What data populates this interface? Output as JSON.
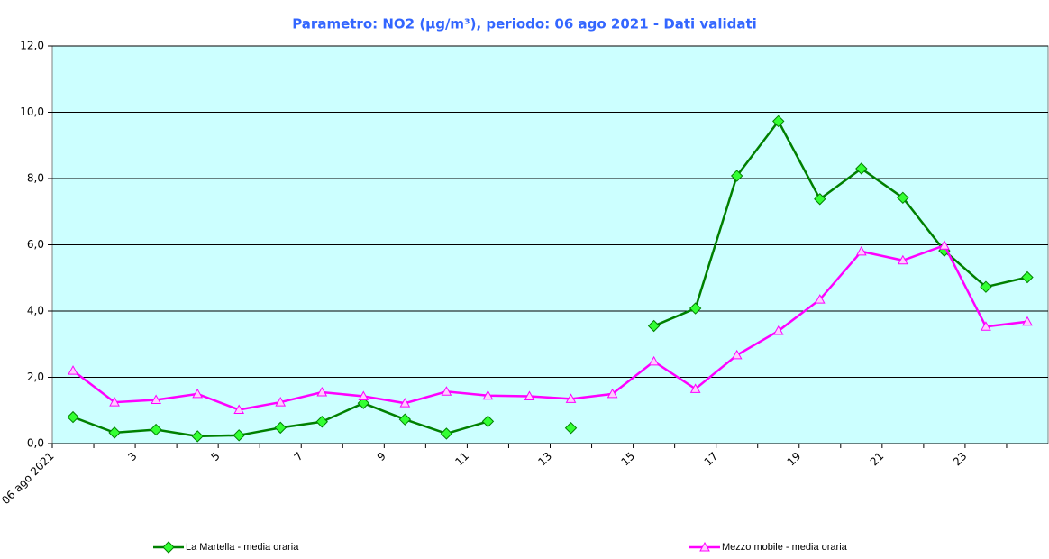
{
  "chart_data": {
    "type": "line",
    "title": "Parametro: NO2 (µg/m³), periodo: 06 ago 2021 - Dati validati",
    "categories": [
      "06 ago 2021",
      null,
      "3",
      null,
      "5",
      null,
      "7",
      null,
      "9",
      null,
      "11",
      null,
      "13",
      null,
      "15",
      null,
      "17",
      null,
      "19",
      null,
      "21",
      null,
      "23",
      null
    ],
    "series": [
      {
        "name": "La Martella - media oraria",
        "color": "#008000",
        "values": [
          0.8,
          0.33,
          0.42,
          0.22,
          0.25,
          0.48,
          0.66,
          1.22,
          0.73,
          0.3,
          0.67,
          null,
          0.47,
          null,
          3.55,
          4.08,
          8.08,
          9.73,
          7.38,
          8.3,
          7.42,
          5.82,
          4.73,
          5.02
        ]
      },
      {
        "name": "Mezzo mobile - media oraria",
        "color": "#ff00ff",
        "values": [
          2.2,
          1.25,
          1.32,
          1.5,
          1.02,
          1.25,
          1.55,
          1.43,
          1.22,
          1.57,
          1.45,
          1.43,
          1.35,
          1.5,
          2.48,
          1.65,
          2.67,
          3.4,
          4.35,
          5.8,
          5.53,
          5.98,
          3.53,
          3.68
        ]
      }
    ],
    "ylim": [
      0,
      12
    ],
    "yticks": [
      {
        "value": 0,
        "label": "0,0"
      },
      {
        "value": 2,
        "label": "2,0"
      },
      {
        "value": 4,
        "label": "4,0"
      },
      {
        "value": 6,
        "label": "6,0"
      },
      {
        "value": 8,
        "label": "8,0"
      },
      {
        "value": 10,
        "label": "10,0"
      },
      {
        "value": 12,
        "label": "12,0"
      }
    ],
    "grid": true,
    "background": "#ccffff",
    "legend": "bottom"
  }
}
